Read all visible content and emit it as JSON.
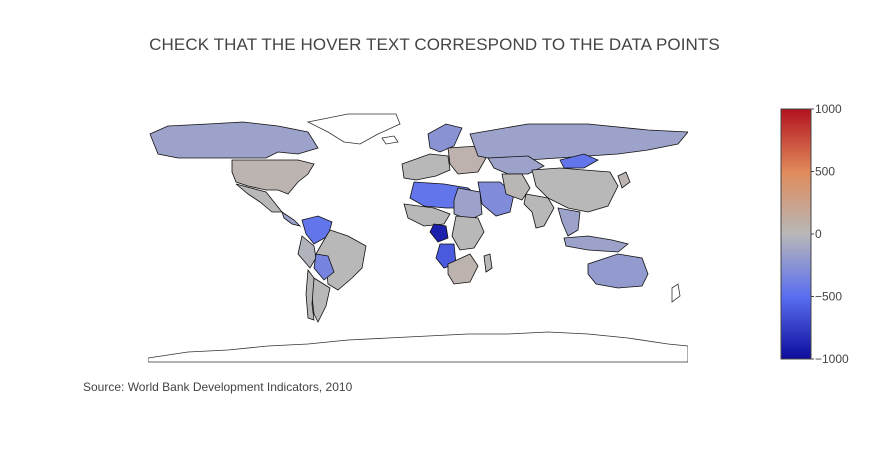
{
  "title": "CHECK THAT THE HOVER TEXT CORRESPOND TO THE DATA POINTS",
  "source": "Source: World Bank Development Indicators, 2010",
  "chart_data": {
    "type": "choropleth",
    "projection": "equirectangular",
    "colorscale": [
      "#0c0c9c",
      "#5a6ef0",
      "#b8b8b8",
      "#e08a5a",
      "#b2121f"
    ],
    "colorbar": {
      "min": -1000,
      "max": 1000,
      "ticks": [
        1000,
        500,
        0,
        -500,
        -1000
      ],
      "tick_labels": [
        "1000",
        "500",
        "0",
        "−500",
        "−1000"
      ]
    },
    "regions": [
      {
        "id": "canada",
        "value": -150
      },
      {
        "id": "usa",
        "value": 40
      },
      {
        "id": "mexico",
        "value": 0
      },
      {
        "id": "central-america",
        "value": -150
      },
      {
        "id": "venezuela-colombia",
        "value": -450
      },
      {
        "id": "brazil",
        "value": 0
      },
      {
        "id": "peru",
        "value": -40
      },
      {
        "id": "bolivia-paraguay",
        "value": -350
      },
      {
        "id": "argentina",
        "value": 0
      },
      {
        "id": "chile",
        "value": 0
      },
      {
        "id": "western-europe",
        "value": 0
      },
      {
        "id": "scandinavia",
        "value": -250
      },
      {
        "id": "eastern-europe",
        "value": 60
      },
      {
        "id": "russia",
        "value": -150
      },
      {
        "id": "kazakhstan",
        "value": -150
      },
      {
        "id": "mongolia",
        "value": -450
      },
      {
        "id": "china",
        "value": 0
      },
      {
        "id": "india",
        "value": 0
      },
      {
        "id": "southeast-asia",
        "value": -150
      },
      {
        "id": "indonesia",
        "value": -150
      },
      {
        "id": "japan",
        "value": 40
      },
      {
        "id": "middle-east",
        "value": -300
      },
      {
        "id": "iran",
        "value": 20
      },
      {
        "id": "north-africa-west",
        "value": -450
      },
      {
        "id": "egypt-sudan",
        "value": -150
      },
      {
        "id": "west-africa",
        "value": 0
      },
      {
        "id": "central-africa",
        "value": -900
      },
      {
        "id": "angola",
        "value": -600
      },
      {
        "id": "east-africa",
        "value": 0
      },
      {
        "id": "southern-africa",
        "value": 50
      },
      {
        "id": "madagascar",
        "value": 0
      },
      {
        "id": "australia",
        "value": -200
      }
    ]
  }
}
